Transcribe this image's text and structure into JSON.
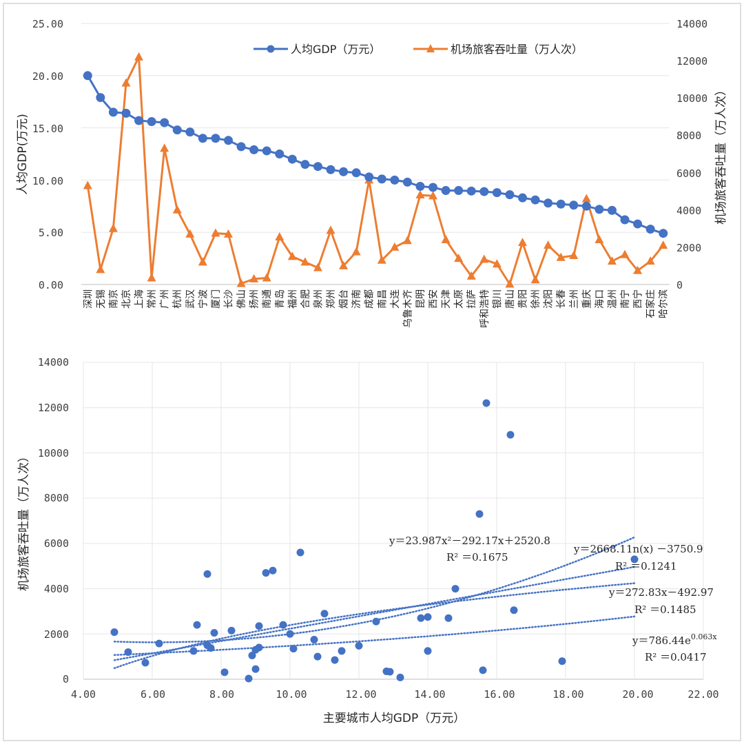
{
  "top_chart": {
    "legend": [
      {
        "label": "人均GDP（万元）",
        "color": "#4472c4",
        "marker": "circle"
      },
      {
        "label": "机场旅客吞吐量（万人次）",
        "color": "#ed7d31",
        "marker": "triangle"
      }
    ],
    "y_left_label": "人均GDP(万元)",
    "y_right_label": "机场旅客吞吐量（万人次）",
    "y_left_ticks": [
      "25.00",
      "20.00",
      "15.00",
      "10.00",
      "5.00",
      "0.00"
    ],
    "y_right_ticks": [
      "14000",
      "12000",
      "10000",
      "8000",
      "6000",
      "4000",
      "2000",
      "0"
    ]
  },
  "bottom_chart": {
    "x_label": "主要城市人均GDP（万元）",
    "y_label": "机场旅客吞吐量（万人次）",
    "x_ticks": [
      "4.00",
      "6.00",
      "8.00",
      "10.00",
      "12.00",
      "14.00",
      "16.00",
      "18.00",
      "20.00",
      "22.00"
    ],
    "y_ticks": [
      "14000",
      "12000",
      "10000",
      "8000",
      "6000",
      "4000",
      "2000",
      "0"
    ],
    "annotations": {
      "poly": "y＝23.987x²－292.17x＋2520.8",
      "poly_r2": "R² ＝0.1675",
      "log": "y＝2668.11n(x) －3750.9",
      "log_r2": "R² ＝0.1241",
      "linear": "y＝272.83x－492.97",
      "linear_r2": "R² ＝0.1485",
      "exp": "y＝786.44e",
      "exp_sup": "0.063x",
      "exp_r2": "R² ＝0.0417"
    }
  },
  "chart_data": [
    {
      "type": "line",
      "categories": [
        "深圳",
        "无锡",
        "南京",
        "北京",
        "上海",
        "常州",
        "广州",
        "杭州",
        "武汉",
        "宁波",
        "厦门",
        "长沙",
        "佛山",
        "扬州",
        "南通",
        "青岛",
        "福州",
        "合肥",
        "泉州",
        "郑州",
        "烟台",
        "济南",
        "成都",
        "南昌",
        "大连",
        "乌鲁木齐",
        "昆明",
        "西安",
        "天津",
        "太原",
        "拉萨",
        "呼和浩特",
        "银川",
        "唐山",
        "贵阳",
        "徐州",
        "沈阳",
        "长春",
        "兰州",
        "重庆",
        "海口",
        "温州",
        "南宁",
        "西宁",
        "石家庄",
        "哈尔滨"
      ],
      "series": [
        {
          "name": "人均GDP（万元）",
          "axis": "left",
          "values": [
            20.0,
            17.9,
            16.5,
            16.4,
            15.7,
            15.6,
            15.5,
            14.8,
            14.6,
            14.0,
            14.0,
            13.8,
            13.2,
            12.9,
            12.8,
            12.5,
            12.0,
            11.5,
            11.3,
            11.0,
            10.8,
            10.7,
            10.3,
            10.1,
            10.0,
            9.8,
            9.4,
            9.3,
            9.0,
            9.0,
            8.95,
            8.9,
            8.8,
            8.6,
            8.3,
            8.1,
            7.8,
            7.7,
            7.6,
            7.5,
            7.2,
            7.1,
            6.2,
            5.8,
            5.3,
            4.9
          ]
        },
        {
          "name": "机场旅客吞吐量（万人次）",
          "axis": "right",
          "values": [
            5300,
            800,
            3000,
            10800,
            12200,
            350,
            7300,
            4000,
            2700,
            1200,
            2750,
            2700,
            50,
            300,
            350,
            2550,
            1500,
            1200,
            900,
            2900,
            1000,
            1750,
            5600,
            1300,
            2000,
            2350,
            4800,
            4750,
            2400,
            1400,
            450,
            1350,
            1100,
            20,
            2250,
            250,
            2100,
            1450,
            1550,
            4600,
            2400,
            1250,
            1600,
            750,
            1250,
            2100
          ]
        }
      ],
      "ylim_left": [
        0,
        25
      ],
      "ylim_right": [
        0,
        14000
      ]
    },
    {
      "type": "scatter",
      "xlabel": "主要城市人均GDP（万元）",
      "ylabel": "机场旅客吞吐量（万人次）",
      "xlim": [
        4,
        22
      ],
      "ylim": [
        0,
        14000
      ],
      "points": [
        [
          20.0,
          5300
        ],
        [
          17.9,
          800
        ],
        [
          16.5,
          3050
        ],
        [
          16.4,
          10800
        ],
        [
          15.7,
          12200
        ],
        [
          15.6,
          400
        ],
        [
          15.5,
          7300
        ],
        [
          14.8,
          4000
        ],
        [
          14.6,
          2700
        ],
        [
          14.0,
          1250
        ],
        [
          14.0,
          2750
        ],
        [
          13.8,
          2700
        ],
        [
          13.2,
          80
        ],
        [
          12.9,
          330
        ],
        [
          12.8,
          350
        ],
        [
          12.5,
          2550
        ],
        [
          12.0,
          1480
        ],
        [
          11.5,
          1250
        ],
        [
          11.3,
          850
        ],
        [
          11.0,
          2900
        ],
        [
          10.8,
          1000
        ],
        [
          10.7,
          1750
        ],
        [
          10.3,
          5600
        ],
        [
          10.1,
          1350
        ],
        [
          10.0,
          2000
        ],
        [
          9.8,
          2400
        ],
        [
          9.5,
          4800
        ],
        [
          9.3,
          4700
        ],
        [
          9.1,
          2350
        ],
        [
          9.1,
          1400
        ],
        [
          9.0,
          450
        ],
        [
          9.0,
          1300
        ],
        [
          8.9,
          1050
        ],
        [
          8.8,
          30
        ],
        [
          8.3,
          2150
        ],
        [
          8.1,
          310
        ],
        [
          7.8,
          2050
        ],
        [
          7.7,
          1380
        ],
        [
          7.6,
          4650
        ],
        [
          7.6,
          1500
        ],
        [
          7.3,
          2400
        ],
        [
          7.2,
          1250
        ],
        [
          6.2,
          1580
        ],
        [
          5.8,
          730
        ],
        [
          5.3,
          1200
        ],
        [
          4.9,
          2080
        ]
      ],
      "trendlines": [
        {
          "kind": "polynomial",
          "equation": "y＝23.987x²－292.17x＋2520.8",
          "r2": 0.1675,
          "a": 23.987,
          "b": -292.17,
          "c": 2520.8
        },
        {
          "kind": "logarithmic",
          "equation": "y＝2668.11n(x) －3750.9",
          "r2": 0.1241,
          "a": 2668.1,
          "b": -3750.9
        },
        {
          "kind": "linear",
          "equation": "y＝272.83x－492.97",
          "r2": 0.1485,
          "m": 272.83,
          "b": -492.97
        },
        {
          "kind": "exponential",
          "equation": "y＝786.44e^(0.063x)",
          "r2": 0.0417,
          "a": 786.44,
          "k": 0.063
        }
      ]
    }
  ]
}
